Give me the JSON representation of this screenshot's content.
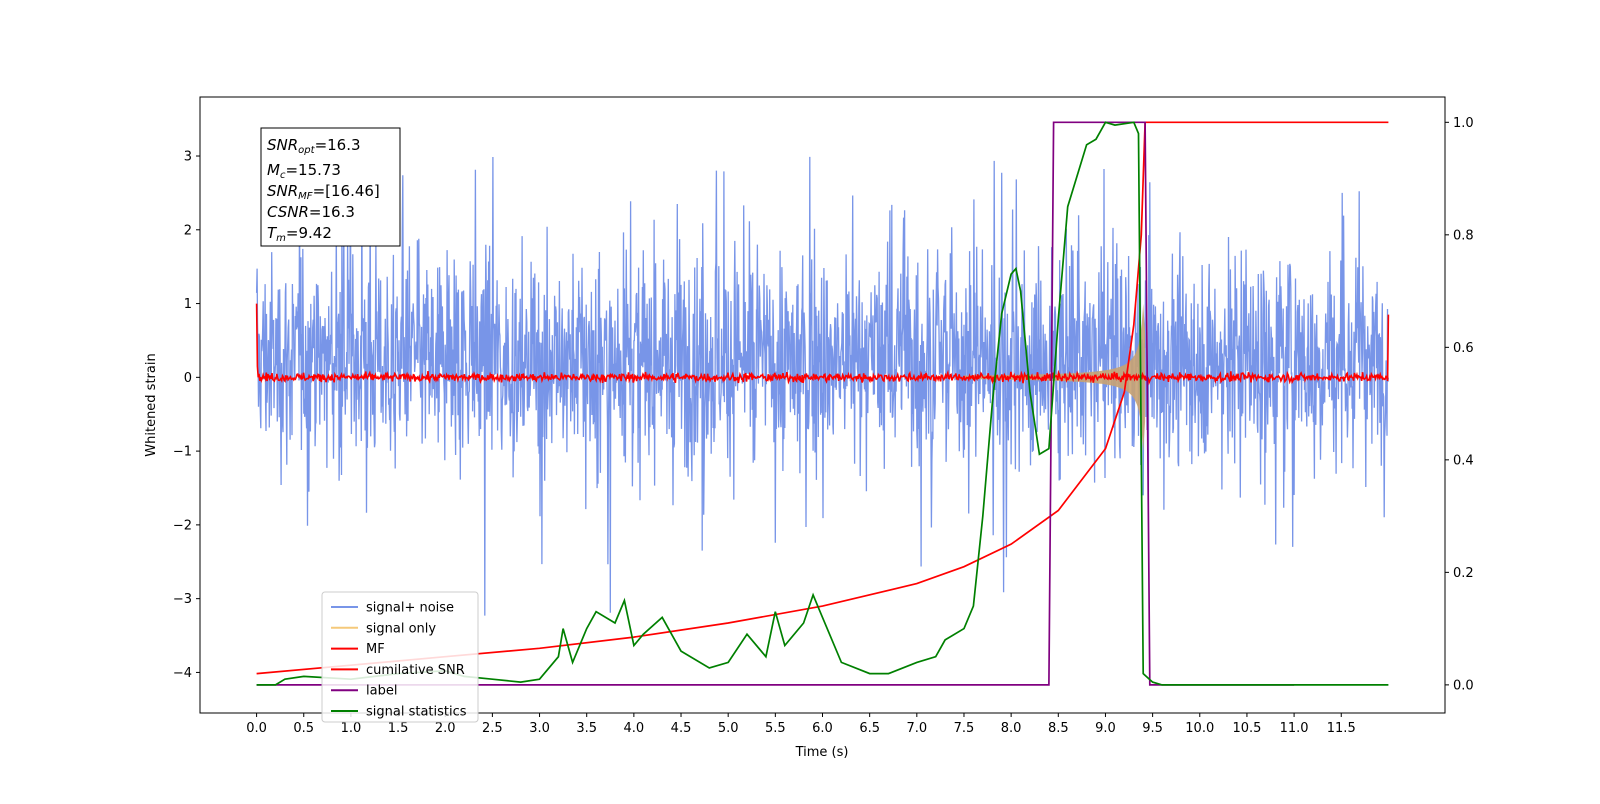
{
  "chart_data": {
    "type": "line",
    "xlabel": "Time (s)",
    "ylabel": "Whitened strain",
    "xlim": [
      -0.6,
      12.6
    ],
    "ylim": [
      -4.55,
      3.8
    ],
    "y2lim": [
      -0.05,
      1.045
    ],
    "x_ticks": [
      "0.0",
      "0.5",
      "1.0",
      "1.5",
      "2.0",
      "2.5",
      "3.0",
      "3.5",
      "4.0",
      "4.5",
      "5.0",
      "5.5",
      "6.0",
      "6.5",
      "7.0",
      "7.5",
      "8.0",
      "8.5",
      "9.0",
      "9.5",
      "10.0",
      "10.5",
      "11.0",
      "11.5"
    ],
    "y_ticks": [
      "3",
      "2",
      "1",
      "0",
      "−1",
      "−2",
      "−3",
      "−4"
    ],
    "y2_ticks": [
      "1.0",
      "0.8",
      "0.6",
      "0.4",
      "0.2",
      "0.0"
    ],
    "grid": false,
    "legend_position": "lower-left",
    "annotations": {
      "snr_opt": {
        "base": "SNR",
        "sub": "opt",
        "value": "=16.3"
      },
      "mc": {
        "base": "M",
        "sub": "c",
        "value": "=15.73"
      },
      "snr_mf": {
        "base": "SNR",
        "sub": "MF",
        "value": "=[16.46]"
      },
      "csnr": {
        "base": "CSNR",
        "sub": "",
        "value": "=16.3"
      },
      "tm": {
        "base": "T",
        "sub": "m",
        "value": "=9.42"
      }
    },
    "series": [
      {
        "name": "signal+ noise",
        "color": "#7895e8",
        "axis": "left",
        "description_note": null,
        "noise_band": {
          "t": [
            0,
            12.0
          ],
          "typical_range": [
            -1.5,
            2.0
          ],
          "peaks_range": [
            -3.3,
            3.4
          ]
        }
      },
      {
        "name": "signal only",
        "color": "#f5c97a",
        "axis": "left",
        "chirp": {
          "t_start": 7.5,
          "t_merge": 9.4,
          "max_amplitude": 1.0
        }
      },
      {
        "name": "MF",
        "color": "#ff0000",
        "axis": "left",
        "noise_level": {
          "mean": 0.0,
          "range": [
            -0.08,
            0.15
          ]
        }
      },
      {
        "name": "cumilative SNR",
        "color": "#ff0000",
        "axis": "right",
        "x": [
          0,
          1,
          2,
          3,
          4,
          5,
          6,
          7,
          7.5,
          8,
          8.5,
          9,
          9.2,
          9.3,
          9.38,
          9.42,
          12.0
        ],
        "y": [
          0.02,
          0.035,
          0.05,
          0.065,
          0.085,
          0.11,
          0.14,
          0.18,
          0.21,
          0.25,
          0.31,
          0.42,
          0.52,
          0.64,
          0.8,
          1.0,
          1.0
        ]
      },
      {
        "name": "label",
        "color": "#800080",
        "axis": "right",
        "x": [
          0,
          8.4,
          8.45,
          9.42,
          9.47,
          11.0
        ],
        "y": [
          0,
          0,
          1,
          1,
          0,
          0
        ]
      },
      {
        "name": "signal statistics",
        "color": "#008000",
        "axis": "right",
        "x": [
          0,
          0.2,
          0.3,
          0.5,
          1.0,
          1.5,
          2.0,
          2.2,
          2.5,
          2.8,
          3.0,
          3.2,
          3.25,
          3.35,
          3.5,
          3.6,
          3.8,
          3.9,
          4.0,
          4.1,
          4.3,
          4.5,
          4.8,
          5.0,
          5.2,
          5.4,
          5.5,
          5.6,
          5.8,
          5.9,
          6.0,
          6.2,
          6.5,
          6.7,
          7.0,
          7.2,
          7.3,
          7.5,
          7.6,
          7.7,
          7.8,
          7.9,
          8.0,
          8.05,
          8.1,
          8.2,
          8.3,
          8.4,
          8.5,
          8.6,
          8.8,
          8.9,
          9.0,
          9.1,
          9.3,
          9.35,
          9.4,
          9.5,
          9.6,
          12.0
        ],
        "y": [
          0.0,
          0.0,
          0.01,
          0.015,
          0.01,
          0.02,
          0.025,
          0.015,
          0.01,
          0.005,
          0.01,
          0.05,
          0.1,
          0.04,
          0.1,
          0.13,
          0.11,
          0.15,
          0.07,
          0.09,
          0.12,
          0.06,
          0.03,
          0.04,
          0.09,
          0.05,
          0.13,
          0.07,
          0.11,
          0.16,
          0.12,
          0.04,
          0.02,
          0.02,
          0.04,
          0.05,
          0.08,
          0.1,
          0.14,
          0.3,
          0.5,
          0.66,
          0.73,
          0.74,
          0.7,
          0.52,
          0.41,
          0.42,
          0.65,
          0.85,
          0.96,
          0.97,
          1.0,
          0.995,
          1.0,
          0.98,
          0.02,
          0.005,
          0.0,
          0.0
        ]
      }
    ]
  }
}
